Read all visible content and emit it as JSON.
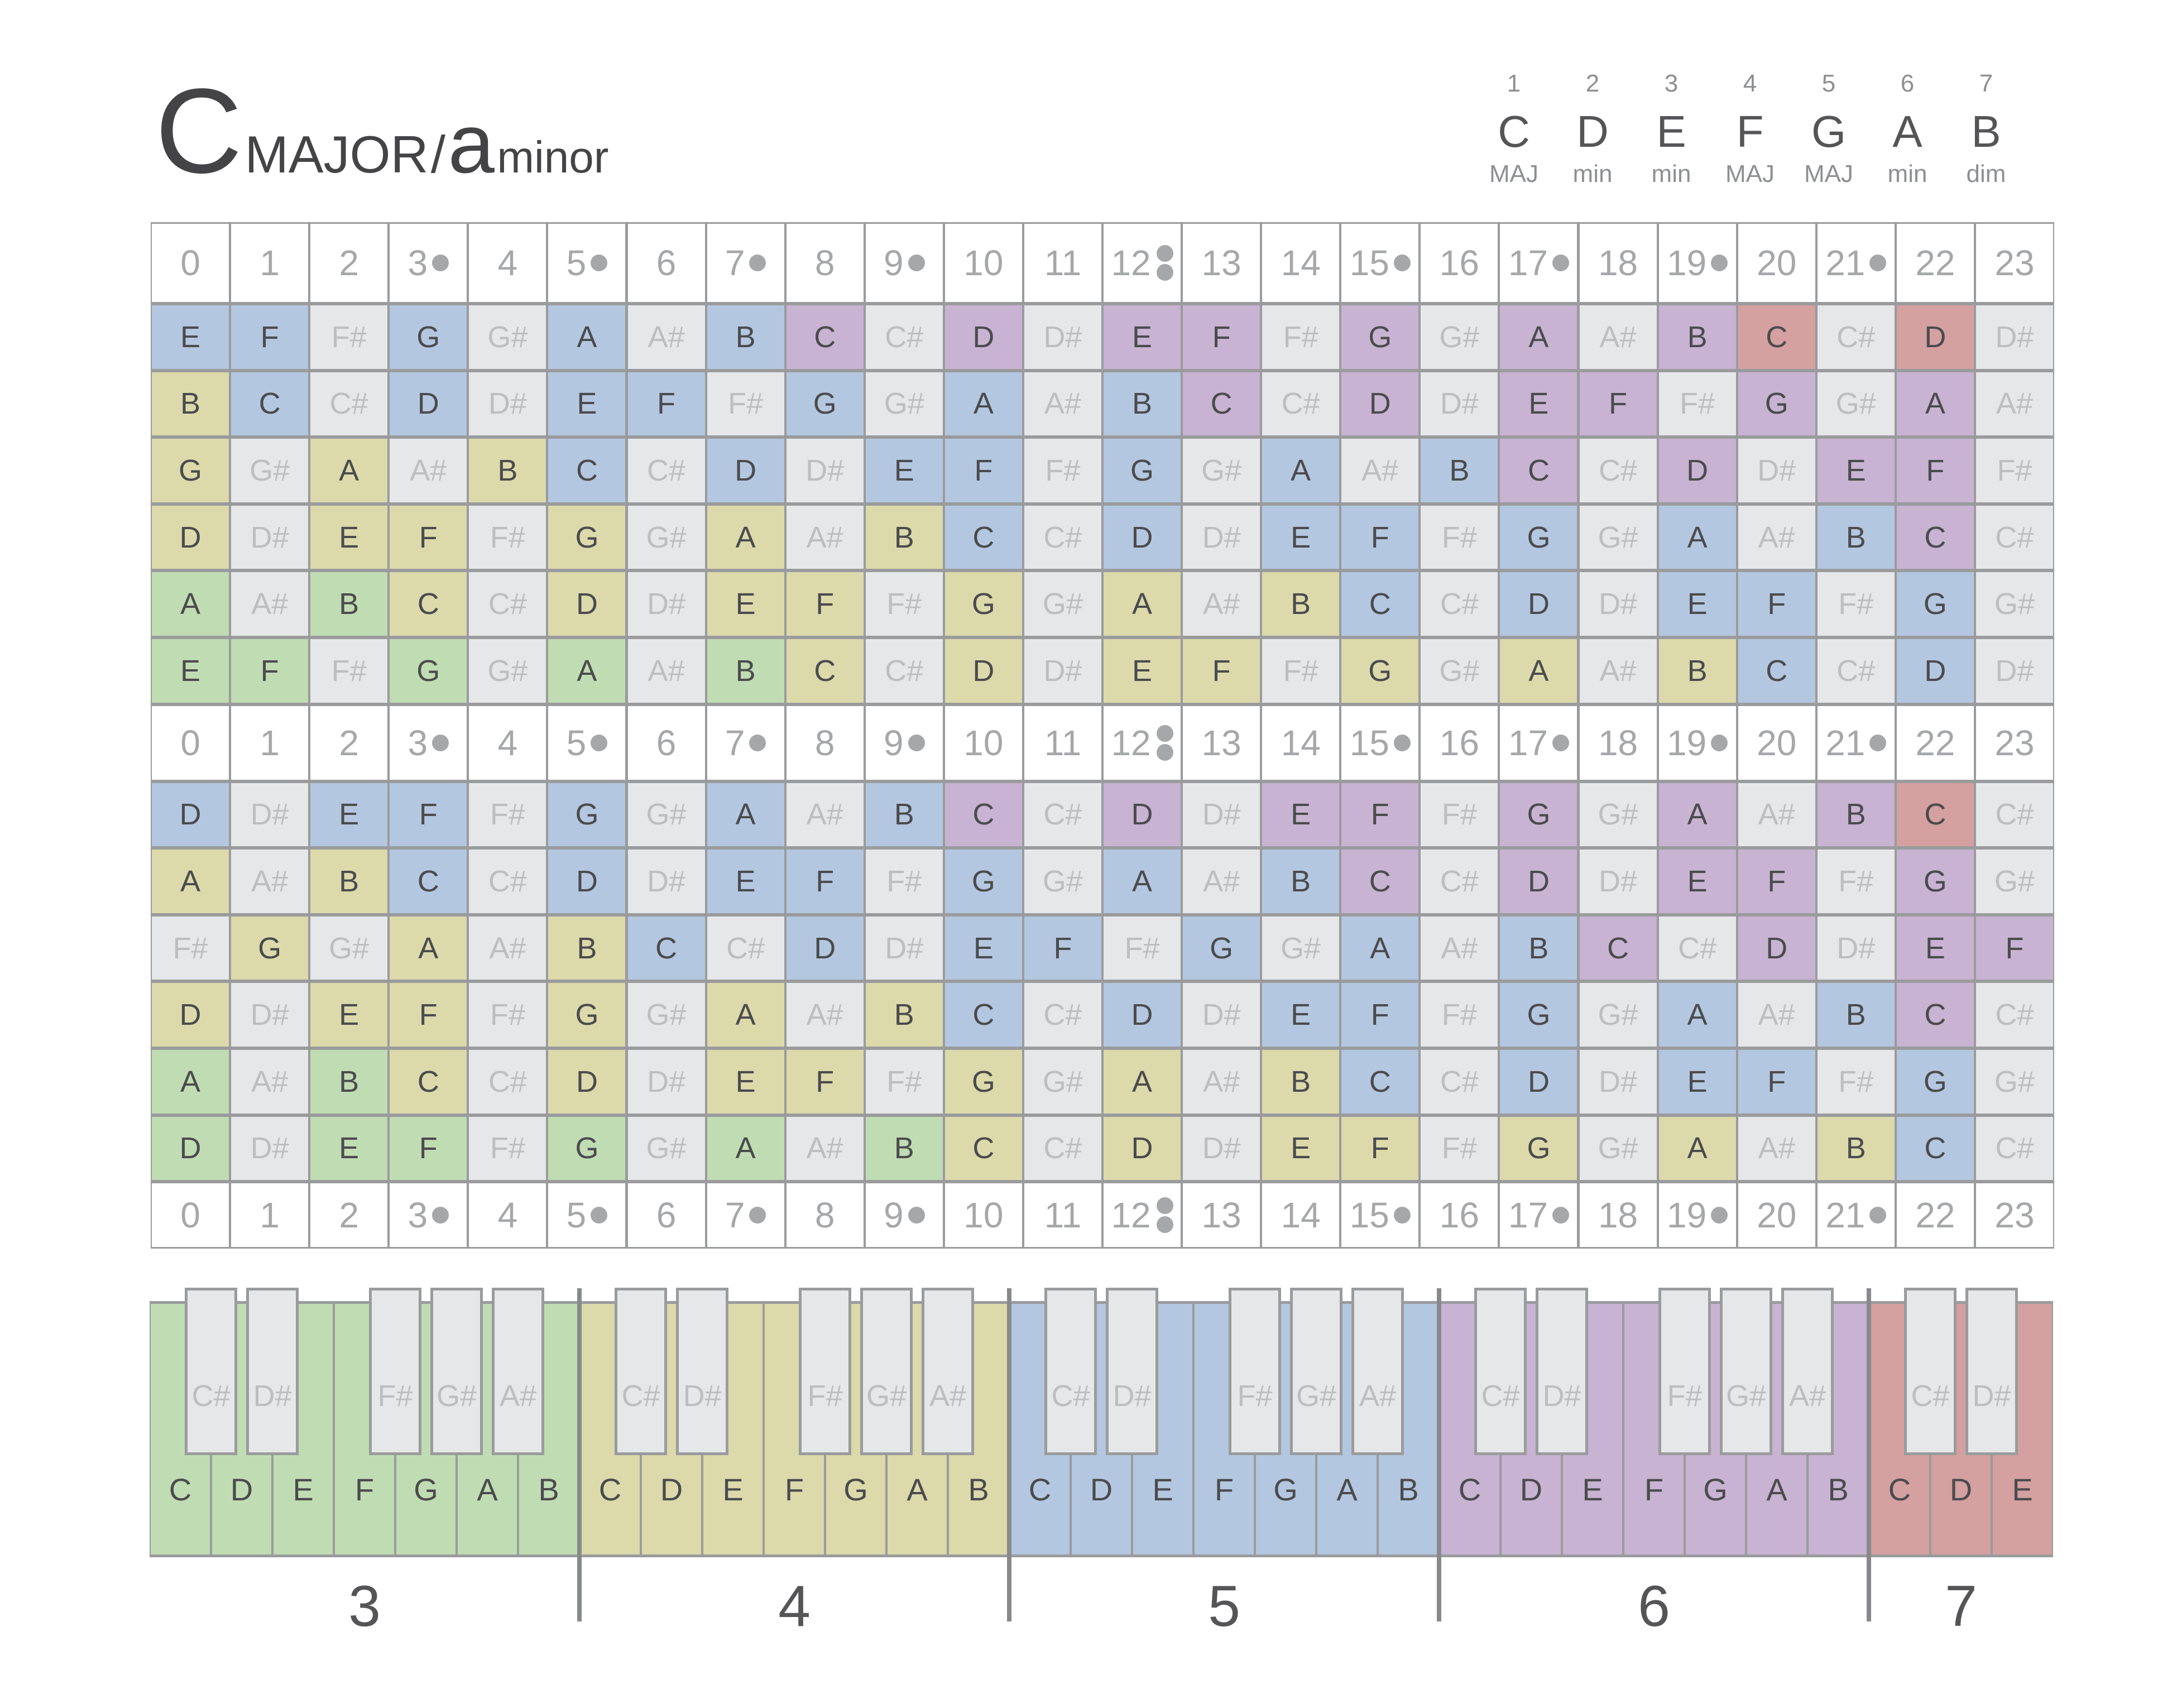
{
  "title": {
    "major_key": "C",
    "major_label": "MAJOR",
    "separator": "/",
    "minor_key": "a",
    "minor_label": "minor"
  },
  "chords": [
    {
      "degree": "1",
      "root": "C",
      "quality": "MAJ"
    },
    {
      "degree": "2",
      "root": "D",
      "quality": "min"
    },
    {
      "degree": "3",
      "root": "E",
      "quality": "min"
    },
    {
      "degree": "4",
      "root": "F",
      "quality": "MAJ"
    },
    {
      "degree": "5",
      "root": "G",
      "quality": "MAJ"
    },
    {
      "degree": "6",
      "root": "A",
      "quality": "min"
    },
    {
      "degree": "7",
      "root": "B",
      "quality": "dim"
    }
  ],
  "fret_numbers": [
    "0",
    "1",
    "2",
    "3",
    "4",
    "5",
    "6",
    "7",
    "8",
    "9",
    "10",
    "11",
    "12",
    "13",
    "14",
    "15",
    "16",
    "17",
    "18",
    "19",
    "20",
    "21",
    "22",
    "23"
  ],
  "fret_markers": {
    "single": [
      3,
      5,
      7,
      9,
      15,
      17,
      19,
      21
    ],
    "double": [
      12
    ]
  },
  "palette": {
    "g": "#c0dcb3",
    "y": "#dcd9ab",
    "b": "#b4c7e0",
    "p": "#c8b3d2",
    "r": "#d4a0a0",
    "x": "#e6e7e9"
  },
  "fretboards": [
    {
      "rows": [
        {
          "notes": [
            "E",
            "F",
            "F#",
            "G",
            "G#",
            "A",
            "A#",
            "B",
            "C",
            "C#",
            "D",
            "D#",
            "E",
            "F",
            "F#",
            "G",
            "G#",
            "A",
            "A#",
            "B",
            "C",
            "C#",
            "D",
            "D#"
          ],
          "colors": "bbxbxbxbpxpxppxpxpxprxrx"
        },
        {
          "notes": [
            "B",
            "C",
            "C#",
            "D",
            "D#",
            "E",
            "F",
            "F#",
            "G",
            "G#",
            "A",
            "A#",
            "B",
            "C",
            "C#",
            "D",
            "D#",
            "E",
            "F",
            "F#",
            "G",
            "G#",
            "A",
            "A#"
          ],
          "colors": "ybxbxbbxbxbxbpxpxppxpxpx"
        },
        {
          "notes": [
            "G",
            "G#",
            "A",
            "A#",
            "B",
            "C",
            "C#",
            "D",
            "D#",
            "E",
            "F",
            "F#",
            "G",
            "G#",
            "A",
            "A#",
            "B",
            "C",
            "C#",
            "D",
            "D#",
            "E",
            "F",
            "F#"
          ],
          "colors": "yxyxybxbxbbxbxbxbpxpxppx"
        },
        {
          "notes": [
            "D",
            "D#",
            "E",
            "F",
            "F#",
            "G",
            "G#",
            "A",
            "A#",
            "B",
            "C",
            "C#",
            "D",
            "D#",
            "E",
            "F",
            "F#",
            "G",
            "G#",
            "A",
            "A#",
            "B",
            "C",
            "C#"
          ],
          "colors": "yxyyxyxyxybxbxbbxbxbxbpx"
        },
        {
          "notes": [
            "A",
            "A#",
            "B",
            "C",
            "C#",
            "D",
            "D#",
            "E",
            "F",
            "F#",
            "G",
            "G#",
            "A",
            "A#",
            "B",
            "C",
            "C#",
            "D",
            "D#",
            "E",
            "F",
            "F#",
            "G",
            "G#"
          ],
          "colors": "gxgyxyxyyxyxyxybxbxbbxbx"
        },
        {
          "notes": [
            "E",
            "F",
            "F#",
            "G",
            "G#",
            "A",
            "A#",
            "B",
            "C",
            "C#",
            "D",
            "D#",
            "E",
            "F",
            "F#",
            "G",
            "G#",
            "A",
            "A#",
            "B",
            "C",
            "C#",
            "D",
            "D#"
          ],
          "colors": "ggxgxgxgyxyxyyxyxyxybxbx"
        }
      ]
    },
    {
      "rows": [
        {
          "notes": [
            "D",
            "D#",
            "E",
            "F",
            "F#",
            "G",
            "G#",
            "A",
            "A#",
            "B",
            "C",
            "C#",
            "D",
            "D#",
            "E",
            "F",
            "F#",
            "G",
            "G#",
            "A",
            "A#",
            "B",
            "C",
            "C#"
          ],
          "colors": "bxbbxbxbxbpxpxppxpxpxprx"
        },
        {
          "notes": [
            "A",
            "A#",
            "B",
            "C",
            "C#",
            "D",
            "D#",
            "E",
            "F",
            "F#",
            "G",
            "G#",
            "A",
            "A#",
            "B",
            "C",
            "C#",
            "D",
            "D#",
            "E",
            "F",
            "F#",
            "G",
            "G#"
          ],
          "colors": "yxybxbxbbxbxbxbpxpxppxpx"
        },
        {
          "notes": [
            "F#",
            "G",
            "G#",
            "A",
            "A#",
            "B",
            "C",
            "C#",
            "D",
            "D#",
            "E",
            "F",
            "F#",
            "G",
            "G#",
            "A",
            "A#",
            "B",
            "C",
            "C#",
            "D",
            "D#",
            "E",
            "F"
          ],
          "colors": "xyxyxybxbxbbxbxbxbpxpxpp"
        },
        {
          "notes": [
            "D",
            "D#",
            "E",
            "F",
            "F#",
            "G",
            "G#",
            "A",
            "A#",
            "B",
            "C",
            "C#",
            "D",
            "D#",
            "E",
            "F",
            "F#",
            "G",
            "G#",
            "A",
            "A#",
            "B",
            "C",
            "C#"
          ],
          "colors": "yxyyxyxyxybxbxbbxbxbxbpx"
        },
        {
          "notes": [
            "A",
            "A#",
            "B",
            "C",
            "C#",
            "D",
            "D#",
            "E",
            "F",
            "F#",
            "G",
            "G#",
            "A",
            "A#",
            "B",
            "C",
            "C#",
            "D",
            "D#",
            "E",
            "F",
            "F#",
            "G",
            "G#"
          ],
          "colors": "gxgyxyxyyxyxyxybxbxbbxbx"
        },
        {
          "notes": [
            "D",
            "D#",
            "E",
            "F",
            "F#",
            "G",
            "G#",
            "A",
            "A#",
            "B",
            "C",
            "C#",
            "D",
            "D#",
            "E",
            "F",
            "F#",
            "G",
            "G#",
            "A",
            "A#",
            "B",
            "C",
            "C#"
          ],
          "colors": "gxggxgxgxgyxyxyyxyxyxybx"
        }
      ]
    }
  ],
  "piano": {
    "octaves": [
      {
        "label": "3",
        "color": "g",
        "white": [
          "C",
          "D",
          "E",
          "F",
          "G",
          "A",
          "B"
        ],
        "black": [
          "C#",
          "D#",
          "F#",
          "G#",
          "A#"
        ]
      },
      {
        "label": "4",
        "color": "y",
        "white": [
          "C",
          "D",
          "E",
          "F",
          "G",
          "A",
          "B"
        ],
        "black": [
          "C#",
          "D#",
          "F#",
          "G#",
          "A#"
        ]
      },
      {
        "label": "5",
        "color": "b",
        "white": [
          "C",
          "D",
          "E",
          "F",
          "G",
          "A",
          "B"
        ],
        "black": [
          "C#",
          "D#",
          "F#",
          "G#",
          "A#"
        ]
      },
      {
        "label": "6",
        "color": "p",
        "white": [
          "C",
          "D",
          "E",
          "F",
          "G",
          "A",
          "B"
        ],
        "black": [
          "C#",
          "D#",
          "F#",
          "G#",
          "A#"
        ]
      },
      {
        "label": "7",
        "color": "r",
        "white": [
          "C",
          "D",
          "E"
        ],
        "black": [
          "C#",
          "D#"
        ]
      }
    ]
  }
}
